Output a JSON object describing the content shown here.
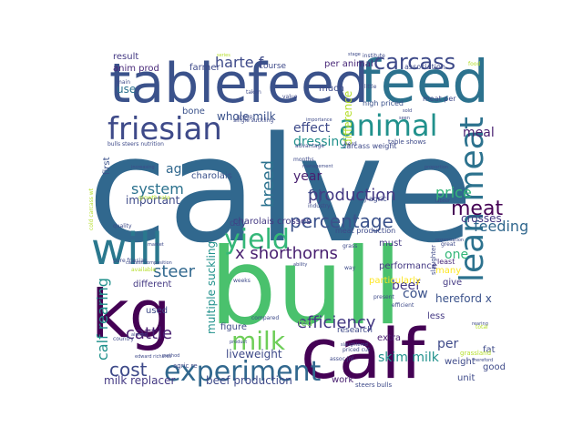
{
  "wordcloud": {
    "words": [
      {
        "text": "calve",
        "color": "#31688e"
      },
      {
        "text": "bull",
        "color": "#4ac16d"
      },
      {
        "text": "feed",
        "color": "#2c728e"
      },
      {
        "text": "tablefeed",
        "color": "#3b528b"
      },
      {
        "text": "calf",
        "color": "#440154"
      },
      {
        "text": "kg",
        "color": "#440154"
      },
      {
        "text": "will",
        "color": "#2a788e"
      },
      {
        "text": "friesian",
        "color": "#3e4a89"
      },
      {
        "text": "animal",
        "color": "#21918c"
      },
      {
        "text": "experiment",
        "color": "#31688e"
      },
      {
        "text": "carcass",
        "color": "#3e4a89"
      },
      {
        "text": "yield",
        "color": "#35b779"
      },
      {
        "text": "lean meat",
        "color": "#2c728e"
      },
      {
        "text": "milk",
        "color": "#6ece58"
      },
      {
        "text": "meat",
        "color": "#440154"
      },
      {
        "text": "percentage",
        "color": "#3b528b"
      },
      {
        "text": "production",
        "color": "#443983"
      },
      {
        "text": "efficiency",
        "color": "#443983"
      },
      {
        "text": "x shorthorns",
        "color": "#481f70"
      },
      {
        "text": "steer",
        "color": "#31688e"
      },
      {
        "text": "cost",
        "color": "#3e4a89"
      },
      {
        "text": "cattle",
        "color": "#481f70"
      },
      {
        "text": "calf rearing",
        "color": "#21918c"
      },
      {
        "text": "breed",
        "color": "#2c728e"
      },
      {
        "text": "system",
        "color": "#2c728e"
      },
      {
        "text": "feeding",
        "color": "#31688e"
      },
      {
        "text": "price",
        "color": "#35b779"
      },
      {
        "text": "harte f",
        "color": "#3e4a89"
      },
      {
        "text": "f j",
        "color": "#3e4a89"
      },
      {
        "text": "age",
        "color": "#31688e"
      },
      {
        "text": "effect",
        "color": "#3e4a89"
      },
      {
        "text": "dressing",
        "color": "#21918c"
      },
      {
        "text": "year",
        "color": "#481f70"
      },
      {
        "text": "meal",
        "color": "#481f70"
      },
      {
        "text": "beef",
        "color": "#443983"
      },
      {
        "text": "one",
        "color": "#35b779"
      },
      {
        "text": "cow",
        "color": "#3b528b"
      },
      {
        "text": "per",
        "color": "#3e4a89"
      },
      {
        "text": "fed",
        "color": "#6ece58"
      },
      {
        "text": "skim milk",
        "color": "#21918c"
      },
      {
        "text": "whole milk",
        "color": "#3b528b"
      },
      {
        "text": "liveweight",
        "color": "#3e4a89"
      },
      {
        "text": "milk replacer",
        "color": "#443983"
      },
      {
        "text": "beef production",
        "color": "#3e4a89"
      },
      {
        "text": "hereford x",
        "color": "#3b528b"
      },
      {
        "text": "crosses",
        "color": "#443983"
      },
      {
        "text": "important",
        "color": "#3e4a89"
      },
      {
        "text": "charolais crosses",
        "color": "#443983"
      },
      {
        "text": "multiple suckling",
        "color": "#21918c"
      },
      {
        "text": "difference",
        "color": "#b5de2b"
      },
      {
        "text": "result",
        "color": "#443983"
      },
      {
        "text": "anim prod",
        "color": "#482878"
      },
      {
        "text": "farmer",
        "color": "#3e4a89"
      },
      {
        "text": "use",
        "color": "#2c728e"
      },
      {
        "text": "bone",
        "color": "#3b528b"
      },
      {
        "text": "different",
        "color": "#443983"
      },
      {
        "text": "used",
        "color": "#3e4a89"
      },
      {
        "text": "figure",
        "color": "#3e4a89"
      },
      {
        "text": "day",
        "color": "#3e4a89"
      },
      {
        "text": "charolais",
        "color": "#3b528b"
      },
      {
        "text": "course",
        "color": "#3e4a89"
      },
      {
        "text": "per animal",
        "color": "#482878"
      },
      {
        "text": "much",
        "color": "#3e4a89"
      },
      {
        "text": "first",
        "color": "#3b528b"
      },
      {
        "text": "extra",
        "color": "#481f70"
      },
      {
        "text": "work",
        "color": "#481f70"
      },
      {
        "text": "fat",
        "color": "#3e4a89"
      },
      {
        "text": "good",
        "color": "#3e4a89"
      },
      {
        "text": "unit",
        "color": "#3e4a89"
      },
      {
        "text": "weight",
        "color": "#3e4a89"
      },
      {
        "text": "many",
        "color": "#fde725"
      },
      {
        "text": "give",
        "color": "#443983"
      },
      {
        "text": "least",
        "color": "#482878"
      },
      {
        "text": "must",
        "color": "#443983"
      },
      {
        "text": "less",
        "color": "#443983"
      },
      {
        "text": "particularly",
        "color": "#fde725"
      },
      {
        "text": "performance",
        "color": "#443983"
      },
      {
        "text": "cold carcass wt",
        "color": "#b5de2b"
      },
      {
        "text": "table shows",
        "color": "#3e4a89"
      },
      {
        "text": "carcass weight",
        "color": "#3e4a89"
      },
      {
        "text": "high priced",
        "color": "#3b528b"
      },
      {
        "text": "meat per",
        "color": "#3e4a89"
      },
      {
        "text": "association",
        "color": "#3e4a89"
      },
      {
        "text": "meat production",
        "color": "#3e4a89"
      },
      {
        "text": "j agric",
        "color": "#3e4a89"
      },
      {
        "text": "growth rate",
        "color": "#b5de2b"
      },
      {
        "text": "bulls steers nutrition",
        "color": "#3e4a89"
      },
      {
        "text": "months",
        "color": "#3e4a89"
      },
      {
        "text": "research",
        "color": "#3e4a89"
      },
      {
        "text": "steers bulls",
        "color": "#3e4a89"
      },
      {
        "text": "edward richards",
        "color": "#3e4a89"
      },
      {
        "text": "agric re",
        "color": "#3e4a89"
      },
      {
        "text": "assoc jnl",
        "color": "#3e4a89"
      },
      {
        "text": "single suckling",
        "color": "#3e4a89"
      },
      {
        "text": "pure friesian",
        "color": "#3e4a89"
      },
      {
        "text": "carcass composition",
        "color": "#3e4a89"
      },
      {
        "text": "country",
        "color": "#3e4a89"
      },
      {
        "text": "quality",
        "color": "#3e4a89"
      },
      {
        "text": "grass",
        "color": "#3e4a89"
      },
      {
        "text": "industry",
        "color": "#3e4a89"
      },
      {
        "text": "slaughter",
        "color": "#3e4a89"
      },
      {
        "text": "present",
        "color": "#3e4a89"
      },
      {
        "text": "weeks",
        "color": "#3e4a89"
      },
      {
        "text": "taken",
        "color": "#3e4a89"
      },
      {
        "text": "value",
        "color": "#3e4a89"
      },
      {
        "text": "little",
        "color": "#3e4a89"
      },
      {
        "text": "management",
        "color": "#3e4a89"
      },
      {
        "text": "herd",
        "color": "#3e4a89"
      },
      {
        "text": "importance",
        "color": "#3e4a89"
      },
      {
        "text": "advantage",
        "color": "#3e4a89"
      },
      {
        "text": "group",
        "color": "#3e4a89"
      },
      {
        "text": "increasing",
        "color": "#3e4a89"
      },
      {
        "text": "main",
        "color": "#3e4a89"
      },
      {
        "text": "food",
        "color": "#b5de2b"
      },
      {
        "text": "grassland",
        "color": "#b5de2b"
      },
      {
        "text": "hereford",
        "color": "#3e4a89"
      },
      {
        "text": "rearing",
        "color": "#3e4a89"
      },
      {
        "text": "great",
        "color": "#3e4a89"
      },
      {
        "text": "priced cut",
        "color": "#3e4a89"
      },
      {
        "text": "proportion",
        "color": "#3e4a89"
      },
      {
        "text": "way",
        "color": "#3e4a89"
      },
      {
        "text": "ability",
        "color": "#3e4a89"
      },
      {
        "text": "almost",
        "color": "#3e4a89"
      },
      {
        "text": "method",
        "color": "#3e4a89"
      },
      {
        "text": "product",
        "color": "#3e4a89"
      },
      {
        "text": "compared",
        "color": "#3e4a89"
      },
      {
        "text": "efficient",
        "color": "#3e4a89"
      },
      {
        "text": "slaughtered",
        "color": "#3e4a89"
      },
      {
        "text": "total",
        "color": "#b5de2b"
      },
      {
        "text": "market",
        "color": "#3e4a89"
      },
      {
        "text": "labour",
        "color": "#3e4a89"
      },
      {
        "text": "available",
        "color": "#b5de2b"
      },
      {
        "text": "organisation",
        "color": "#3e4a89"
      },
      {
        "text": "institute",
        "color": "#3e4a89"
      },
      {
        "text": "seen",
        "color": "#3e4a89"
      },
      {
        "text": "sold",
        "color": "#3e4a89"
      },
      {
        "text": "stage",
        "color": "#3e4a89"
      },
      {
        "text": "series",
        "color": "#b5de2b"
      }
    ]
  }
}
